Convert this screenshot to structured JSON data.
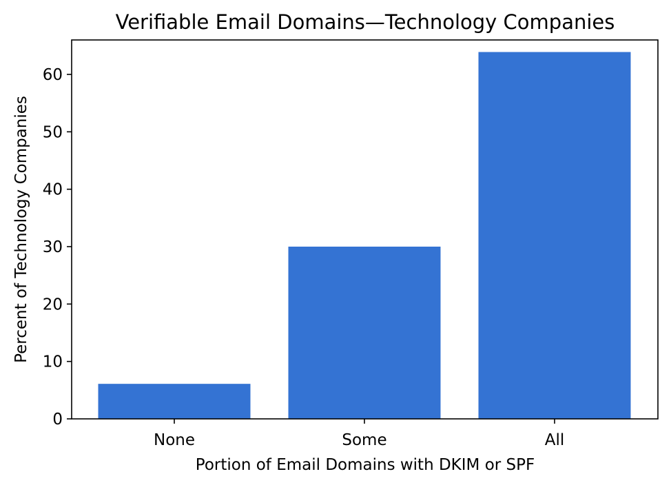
{
  "chart_data": {
    "type": "bar",
    "title": "Verifiable Email Domains—Technology Companies",
    "xlabel": "Portion of Email Domains with DKIM or SPF",
    "ylabel": "Percent of Technology Companies",
    "categories": [
      "None",
      "Some",
      "All"
    ],
    "values": [
      6.1,
      30.0,
      63.9
    ],
    "ylim": [
      0,
      66
    ],
    "yticks": [
      0,
      10,
      20,
      30,
      40,
      50,
      60
    ],
    "bar_color": "#3473d3",
    "grid": false,
    "legend": "none"
  }
}
